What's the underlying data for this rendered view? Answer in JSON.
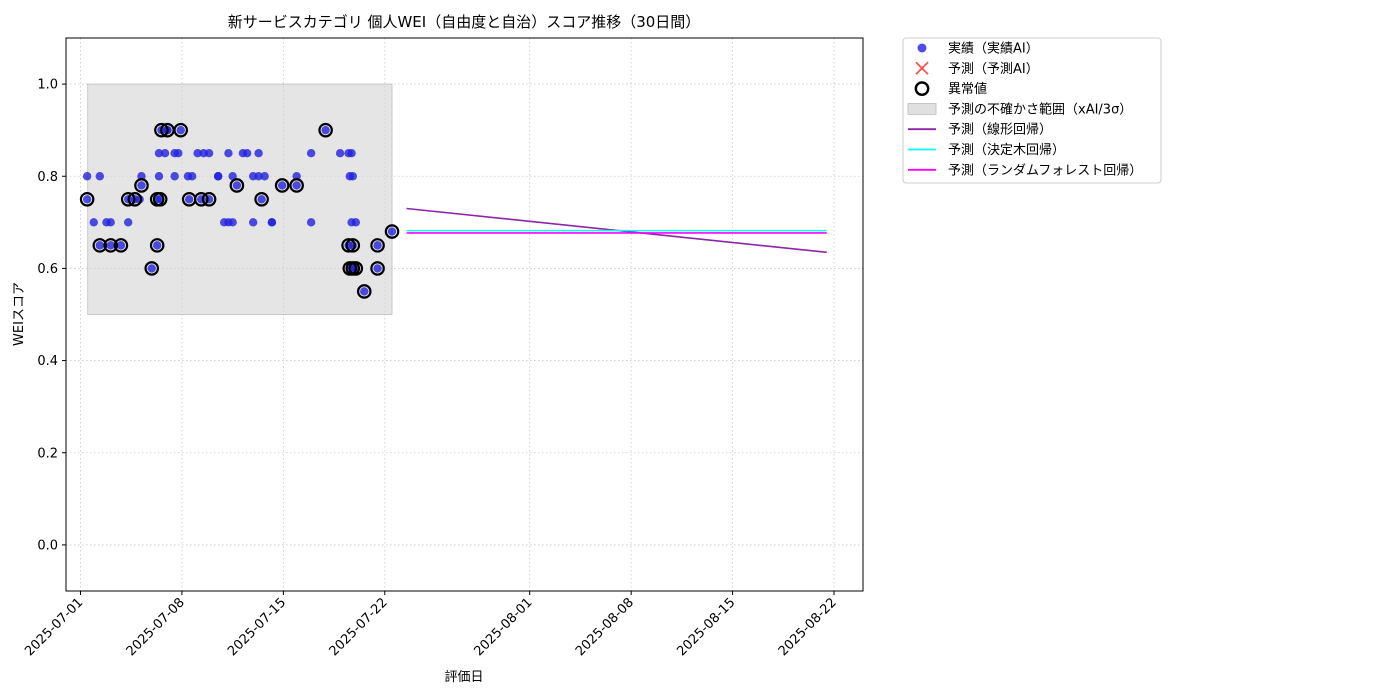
{
  "chart_data": {
    "type": "scatter",
    "title": "新サービスカテゴリ 個人WEI（自由度と自治）スコア推移（30日間）",
    "xlabel": "評価日",
    "ylabel": "WEIスコア",
    "xlim": [
      "2025-06-30",
      "2025-08-24"
    ],
    "ylim": [
      -0.1,
      1.1
    ],
    "yticks": [
      0.0,
      0.2,
      0.4,
      0.6,
      0.8,
      1.0
    ],
    "ytick_labels": [
      "0.0",
      "0.2",
      "0.4",
      "0.6",
      "0.8",
      "1.0"
    ],
    "xticks": [
      "2025-07-01",
      "2025-07-08",
      "2025-07-15",
      "2025-07-22",
      "2025-08-01",
      "2025-08-08",
      "2025-08-15",
      "2025-08-22"
    ],
    "xtick_labels": [
      "2025-07-01",
      "2025-07-08",
      "2025-07-15",
      "2025-07-22",
      "2025-08-01",
      "2025-08-08",
      "2025-08-15",
      "2025-08-22"
    ],
    "grid": true,
    "legend_position": "outside top-right",
    "colors": {
      "actual": "#2222dd",
      "predicted_ai": "#ff3333",
      "anomaly": "#000000",
      "band": "#d3d3d3",
      "linear": "#8e24aa",
      "tree": "#00ffff",
      "forest": "#ff00ff"
    },
    "uncertainty_band": {
      "name": "予測の不確かさ範囲（xAI/3σ）",
      "x": [
        "2025-07-01 12:00",
        "2025-07-22 12:00"
      ],
      "y": [
        0.5,
        1.0
      ]
    },
    "series": [
      {
        "name": "実績（実績AI）",
        "kind": "scatter",
        "points": [
          [
            "2025-07-01 11:00",
            0.75
          ],
          [
            "2025-07-01 11:00",
            0.8
          ],
          [
            "2025-07-01 22:00",
            0.7
          ],
          [
            "2025-07-02 08:00",
            0.8
          ],
          [
            "2025-07-02 08:00",
            0.65
          ],
          [
            "2025-07-02 19:00",
            0.7
          ],
          [
            "2025-07-03 02:00",
            0.7
          ],
          [
            "2025-07-03 02:00",
            0.65
          ],
          [
            "2025-07-03 19:00",
            0.65
          ],
          [
            "2025-07-04 07:00",
            0.7
          ],
          [
            "2025-07-04 07:00",
            0.75
          ],
          [
            "2025-07-04 18:00",
            0.75
          ],
          [
            "2025-07-05 02:00",
            0.75
          ],
          [
            "2025-07-05 05:00",
            0.8
          ],
          [
            "2025-07-05 05:00",
            0.78
          ],
          [
            "2025-07-05 22:00",
            0.6
          ],
          [
            "2025-07-06 07:00",
            0.65
          ],
          [
            "2025-07-06 07:00",
            0.75
          ],
          [
            "2025-07-06 10:00",
            0.85
          ],
          [
            "2025-07-06 10:00",
            0.8
          ],
          [
            "2025-07-06 12:00",
            0.75
          ],
          [
            "2025-07-06 14:00",
            0.9
          ],
          [
            "2025-07-06 20:00",
            0.85
          ],
          [
            "2025-07-07 00:00",
            0.9
          ],
          [
            "2025-07-07 00:00",
            0.9
          ],
          [
            "2025-07-07 12:00",
            0.8
          ],
          [
            "2025-07-07 12:00",
            0.85
          ],
          [
            "2025-07-07 18:00",
            0.85
          ],
          [
            "2025-07-07 22:00",
            0.9
          ],
          [
            "2025-07-08 10:00",
            0.8
          ],
          [
            "2025-07-08 12:00",
            0.75
          ],
          [
            "2025-07-08 17:00",
            0.8
          ],
          [
            "2025-07-09 02:00",
            0.85
          ],
          [
            "2025-07-09 08:00",
            0.75
          ],
          [
            "2025-07-09 12:00",
            0.85
          ],
          [
            "2025-07-09 21:00",
            0.75
          ],
          [
            "2025-07-09 21:00",
            0.85
          ],
          [
            "2025-07-10 12:00",
            0.8
          ],
          [
            "2025-07-10 12:00",
            0.8
          ],
          [
            "2025-07-10 22:00",
            0.7
          ],
          [
            "2025-07-11 05:00",
            0.85
          ],
          [
            "2025-07-11 05:00",
            0.7
          ],
          [
            "2025-07-11 12:00",
            0.8
          ],
          [
            "2025-07-11 12:00",
            0.7
          ],
          [
            "2025-07-11 19:00",
            0.78
          ],
          [
            "2025-07-12 05:00",
            0.85
          ],
          [
            "2025-07-12 12:00",
            0.85
          ],
          [
            "2025-07-12 22:00",
            0.8
          ],
          [
            "2025-07-12 22:00",
            0.7
          ],
          [
            "2025-07-13 07:00",
            0.85
          ],
          [
            "2025-07-13 07:00",
            0.8
          ],
          [
            "2025-07-13 12:00",
            0.75
          ],
          [
            "2025-07-13 17:00",
            0.8
          ],
          [
            "2025-07-14 05:00",
            0.7
          ],
          [
            "2025-07-14 05:00",
            0.7
          ],
          [
            "2025-07-14 22:00",
            0.78
          ],
          [
            "2025-07-15 22:00",
            0.78
          ],
          [
            "2025-07-15 22:00",
            0.8
          ],
          [
            "2025-07-16 22:00",
            0.85
          ],
          [
            "2025-07-16 22:00",
            0.7
          ],
          [
            "2025-07-17 22:00",
            0.9
          ],
          [
            "2025-07-18 22:00",
            0.85
          ],
          [
            "2025-07-19 12:00",
            0.85
          ],
          [
            "2025-07-19 12:00",
            0.65
          ],
          [
            "2025-07-19 14:00",
            0.8
          ],
          [
            "2025-07-19 14:00",
            0.6
          ],
          [
            "2025-07-19 17:00",
            0.85
          ],
          [
            "2025-07-19 17:00",
            0.7
          ],
          [
            "2025-07-19 19:00",
            0.8
          ],
          [
            "2025-07-19 19:00",
            0.65
          ],
          [
            "2025-07-19 19:00",
            0.6
          ],
          [
            "2025-07-20 00:00",
            0.7
          ],
          [
            "2025-07-20 00:00",
            0.6
          ],
          [
            "2025-07-20 14:00",
            0.55
          ],
          [
            "2025-07-21 12:00",
            0.65
          ],
          [
            "2025-07-21 12:00",
            0.6
          ],
          [
            "2025-07-22 12:00",
            0.68
          ]
        ]
      },
      {
        "name": "予測（予測AI）",
        "kind": "marker-x",
        "points": []
      },
      {
        "name": "異常値",
        "kind": "ring",
        "points": [
          [
            "2025-07-01 11:00",
            0.75
          ],
          [
            "2025-07-02 08:00",
            0.65
          ],
          [
            "2025-07-03 02:00",
            0.65
          ],
          [
            "2025-07-03 19:00",
            0.65
          ],
          [
            "2025-07-04 07:00",
            0.75
          ],
          [
            "2025-07-04 18:00",
            0.75
          ],
          [
            "2025-07-05 05:00",
            0.78
          ],
          [
            "2025-07-05 22:00",
            0.6
          ],
          [
            "2025-07-06 07:00",
            0.65
          ],
          [
            "2025-07-06 07:00",
            0.75
          ],
          [
            "2025-07-06 12:00",
            0.75
          ],
          [
            "2025-07-06 14:00",
            0.9
          ],
          [
            "2025-07-07 00:00",
            0.9
          ],
          [
            "2025-07-07 22:00",
            0.9
          ],
          [
            "2025-07-08 12:00",
            0.75
          ],
          [
            "2025-07-09 08:00",
            0.75
          ],
          [
            "2025-07-09 21:00",
            0.75
          ],
          [
            "2025-07-11 19:00",
            0.78
          ],
          [
            "2025-07-13 12:00",
            0.75
          ],
          [
            "2025-07-14 22:00",
            0.78
          ],
          [
            "2025-07-15 22:00",
            0.78
          ],
          [
            "2025-07-17 22:00",
            0.9
          ],
          [
            "2025-07-19 12:00",
            0.65
          ],
          [
            "2025-07-19 14:00",
            0.6
          ],
          [
            "2025-07-19 19:00",
            0.65
          ],
          [
            "2025-07-19 19:00",
            0.6
          ],
          [
            "2025-07-20 00:00",
            0.6
          ],
          [
            "2025-07-20 14:00",
            0.55
          ],
          [
            "2025-07-21 12:00",
            0.65
          ],
          [
            "2025-07-21 12:00",
            0.6
          ],
          [
            "2025-07-22 12:00",
            0.68
          ]
        ]
      },
      {
        "name": "予測（線形回帰）",
        "kind": "line",
        "color_key": "linear",
        "points": [
          [
            "2025-07-23 12:00",
            0.73
          ],
          [
            "2025-08-21 12:00",
            0.635
          ]
        ]
      },
      {
        "name": "予測（決定木回帰）",
        "kind": "line",
        "color_key": "tree",
        "points": [
          [
            "2025-07-23 12:00",
            0.682
          ],
          [
            "2025-08-21 12:00",
            0.682
          ]
        ]
      },
      {
        "name": "予測（ランダムフォレスト回帰）",
        "kind": "line",
        "color_key": "forest",
        "points": [
          [
            "2025-07-23 12:00",
            0.677
          ],
          [
            "2025-08-21 12:00",
            0.677
          ]
        ]
      }
    ],
    "legend": [
      {
        "label": "実績（実績AI）",
        "symbol": "dot",
        "color_key": "actual"
      },
      {
        "label": "予測（予測AI）",
        "symbol": "x",
        "color_key": "predicted_ai"
      },
      {
        "label": "異常値",
        "symbol": "ring",
        "color_key": "anomaly"
      },
      {
        "label": "予測の不確かさ範囲（xAI/3σ）",
        "symbol": "patch",
        "color_key": "band"
      },
      {
        "label": "予測（線形回帰）",
        "symbol": "line",
        "color_key": "linear"
      },
      {
        "label": "予測（決定木回帰）",
        "symbol": "line",
        "color_key": "tree"
      },
      {
        "label": "予測（ランダムフォレスト回帰）",
        "symbol": "line",
        "color_key": "forest"
      }
    ]
  }
}
